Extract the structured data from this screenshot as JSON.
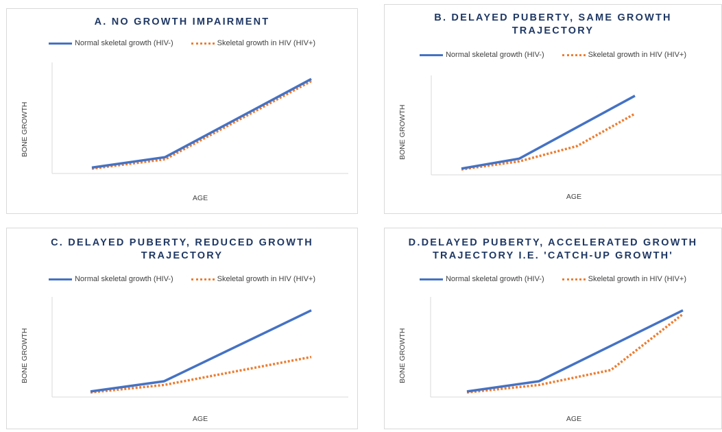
{
  "legend": {
    "normal": "Normal skeletal growth (HIV-)",
    "hiv": "Skeletal growth in HIV (HIV+)"
  },
  "colors": {
    "normal": "#4472c4",
    "hiv": "#ed7d31",
    "title": "#1f3864",
    "axis": "#d9d9d9"
  },
  "chart_data": [
    {
      "type": "line",
      "title": "A. NO GROWTH IMPAIRMENT",
      "xlabel": "AGE",
      "ylabel": "BONE GROWTH",
      "x": [
        0,
        1,
        3
      ],
      "ylim": [
        0,
        10
      ],
      "grid": false,
      "legend_position": "top",
      "series": [
        {
          "name": "Normal skeletal growth (HIV-)",
          "style": "solid",
          "values": [
            0.3,
            1.3,
            8.8
          ]
        },
        {
          "name": "Skeletal growth in HIV (HIV+)",
          "style": "dotted",
          "values": [
            0.2,
            1.1,
            8.6
          ]
        }
      ]
    },
    {
      "type": "line",
      "title": "B. DELAYED PUBERTY, SAME GROWTH TRAJECTORY",
      "xlabel": "AGE",
      "ylabel": "BONE GROWTH",
      "x": [
        0,
        1,
        2,
        3
      ],
      "ylim": [
        0,
        10
      ],
      "grid": false,
      "legend_position": "top",
      "series": [
        {
          "name": "Normal skeletal growth (HIV-)",
          "style": "solid",
          "values": [
            0.4,
            1.5,
            null,
            8.5
          ]
        },
        {
          "name": "Skeletal growth in HIV (HIV+)",
          "style": "dotted",
          "values": [
            0.3,
            1.2,
            2.9,
            6.5
          ]
        }
      ]
    },
    {
      "type": "line",
      "title": "C. DELAYED PUBERTY, REDUCED GROWTH TRAJECTORY",
      "xlabel": "AGE",
      "ylabel": "BONE GROWTH",
      "x": [
        0,
        1,
        3
      ],
      "ylim": [
        0,
        10
      ],
      "grid": false,
      "legend_position": "top",
      "series": [
        {
          "name": "Normal skeletal growth (HIV-)",
          "style": "solid",
          "values": [
            0.3,
            1.4,
            9.0
          ]
        },
        {
          "name": "Skeletal growth in HIV (HIV+)",
          "style": "dotted",
          "values": [
            0.2,
            1.0,
            4.0
          ]
        }
      ]
    },
    {
      "type": "line",
      "title": "D.DELAYED PUBERTY, ACCELERATED GROWTH TRAJECTORY I.E. 'CATCH-UP GROWTH'",
      "xlabel": "AGE",
      "ylabel": "BONE GROWTH",
      "x": [
        0,
        1,
        2,
        3
      ],
      "ylim": [
        0,
        10
      ],
      "grid": false,
      "legend_position": "top",
      "series": [
        {
          "name": "Normal skeletal growth (HIV-)",
          "style": "solid",
          "values": [
            0.3,
            1.4,
            null,
            9.0
          ]
        },
        {
          "name": "Skeletal growth in HIV (HIV+)",
          "style": "dotted",
          "values": [
            0.2,
            1.0,
            2.6,
            8.6
          ]
        }
      ]
    }
  ],
  "title_lines": [
    [
      "A. NO GROWTH IMPAIRMENT"
    ],
    [
      "B. DELAYED PUBERTY, SAME GROWTH",
      "TRAJECTORY"
    ],
    [
      "C. DELAYED PUBERTY, REDUCED GROWTH",
      "TRAJECTORY"
    ],
    [
      "D.DELAYED PUBERTY, ACCELERATED GROWTH",
      "TRAJECTORY I.E. 'CATCH-UP GROWTH'"
    ]
  ]
}
